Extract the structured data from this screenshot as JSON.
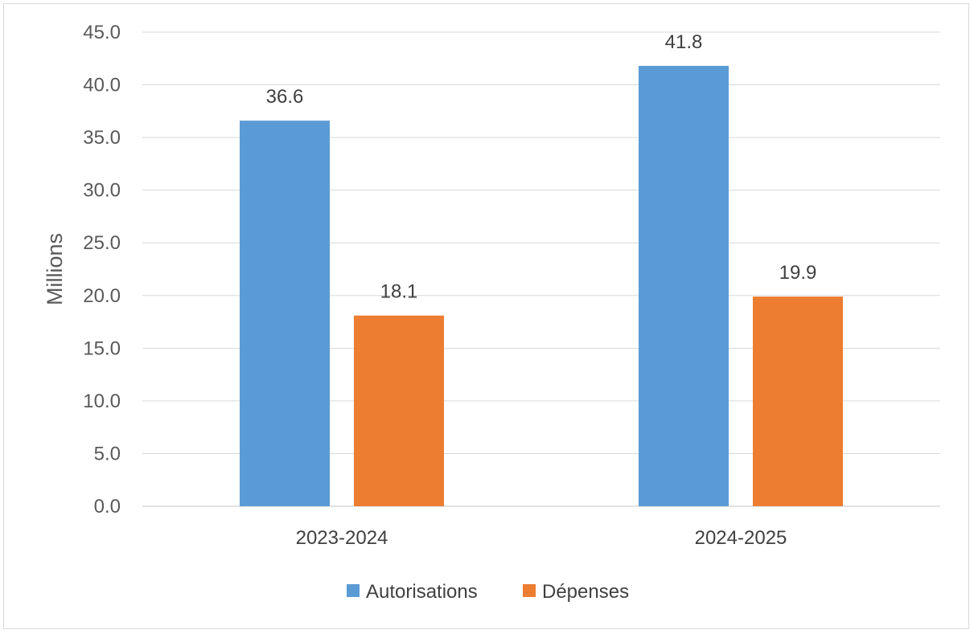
{
  "chart_data": {
    "type": "bar",
    "categories": [
      "2023-2024",
      "2024-2025"
    ],
    "series": [
      {
        "name": "Autorisations",
        "values": [
          36.6,
          41.8
        ],
        "color": "#5b9bd5"
      },
      {
        "name": "Dépenses",
        "values": [
          18.1,
          19.9
        ],
        "color": "#ed7d31"
      }
    ],
    "data_labels": [
      [
        "36.6",
        "41.8"
      ],
      [
        "18.1",
        "19.9"
      ]
    ],
    "title": "",
    "xlabel": "",
    "ylabel": "Millions",
    "ylim": [
      0,
      45
    ],
    "yticks": [
      0,
      5,
      10,
      15,
      20,
      25,
      30,
      35,
      40,
      45
    ],
    "ytick_labels": [
      "0.0",
      "5.0",
      "10.0",
      "15.0",
      "20.0",
      "25.0",
      "30.0",
      "35.0",
      "40.0",
      "45.0"
    ],
    "grid": true,
    "gridline_color": "#d9d9d9",
    "legend_placement": "bottom"
  }
}
